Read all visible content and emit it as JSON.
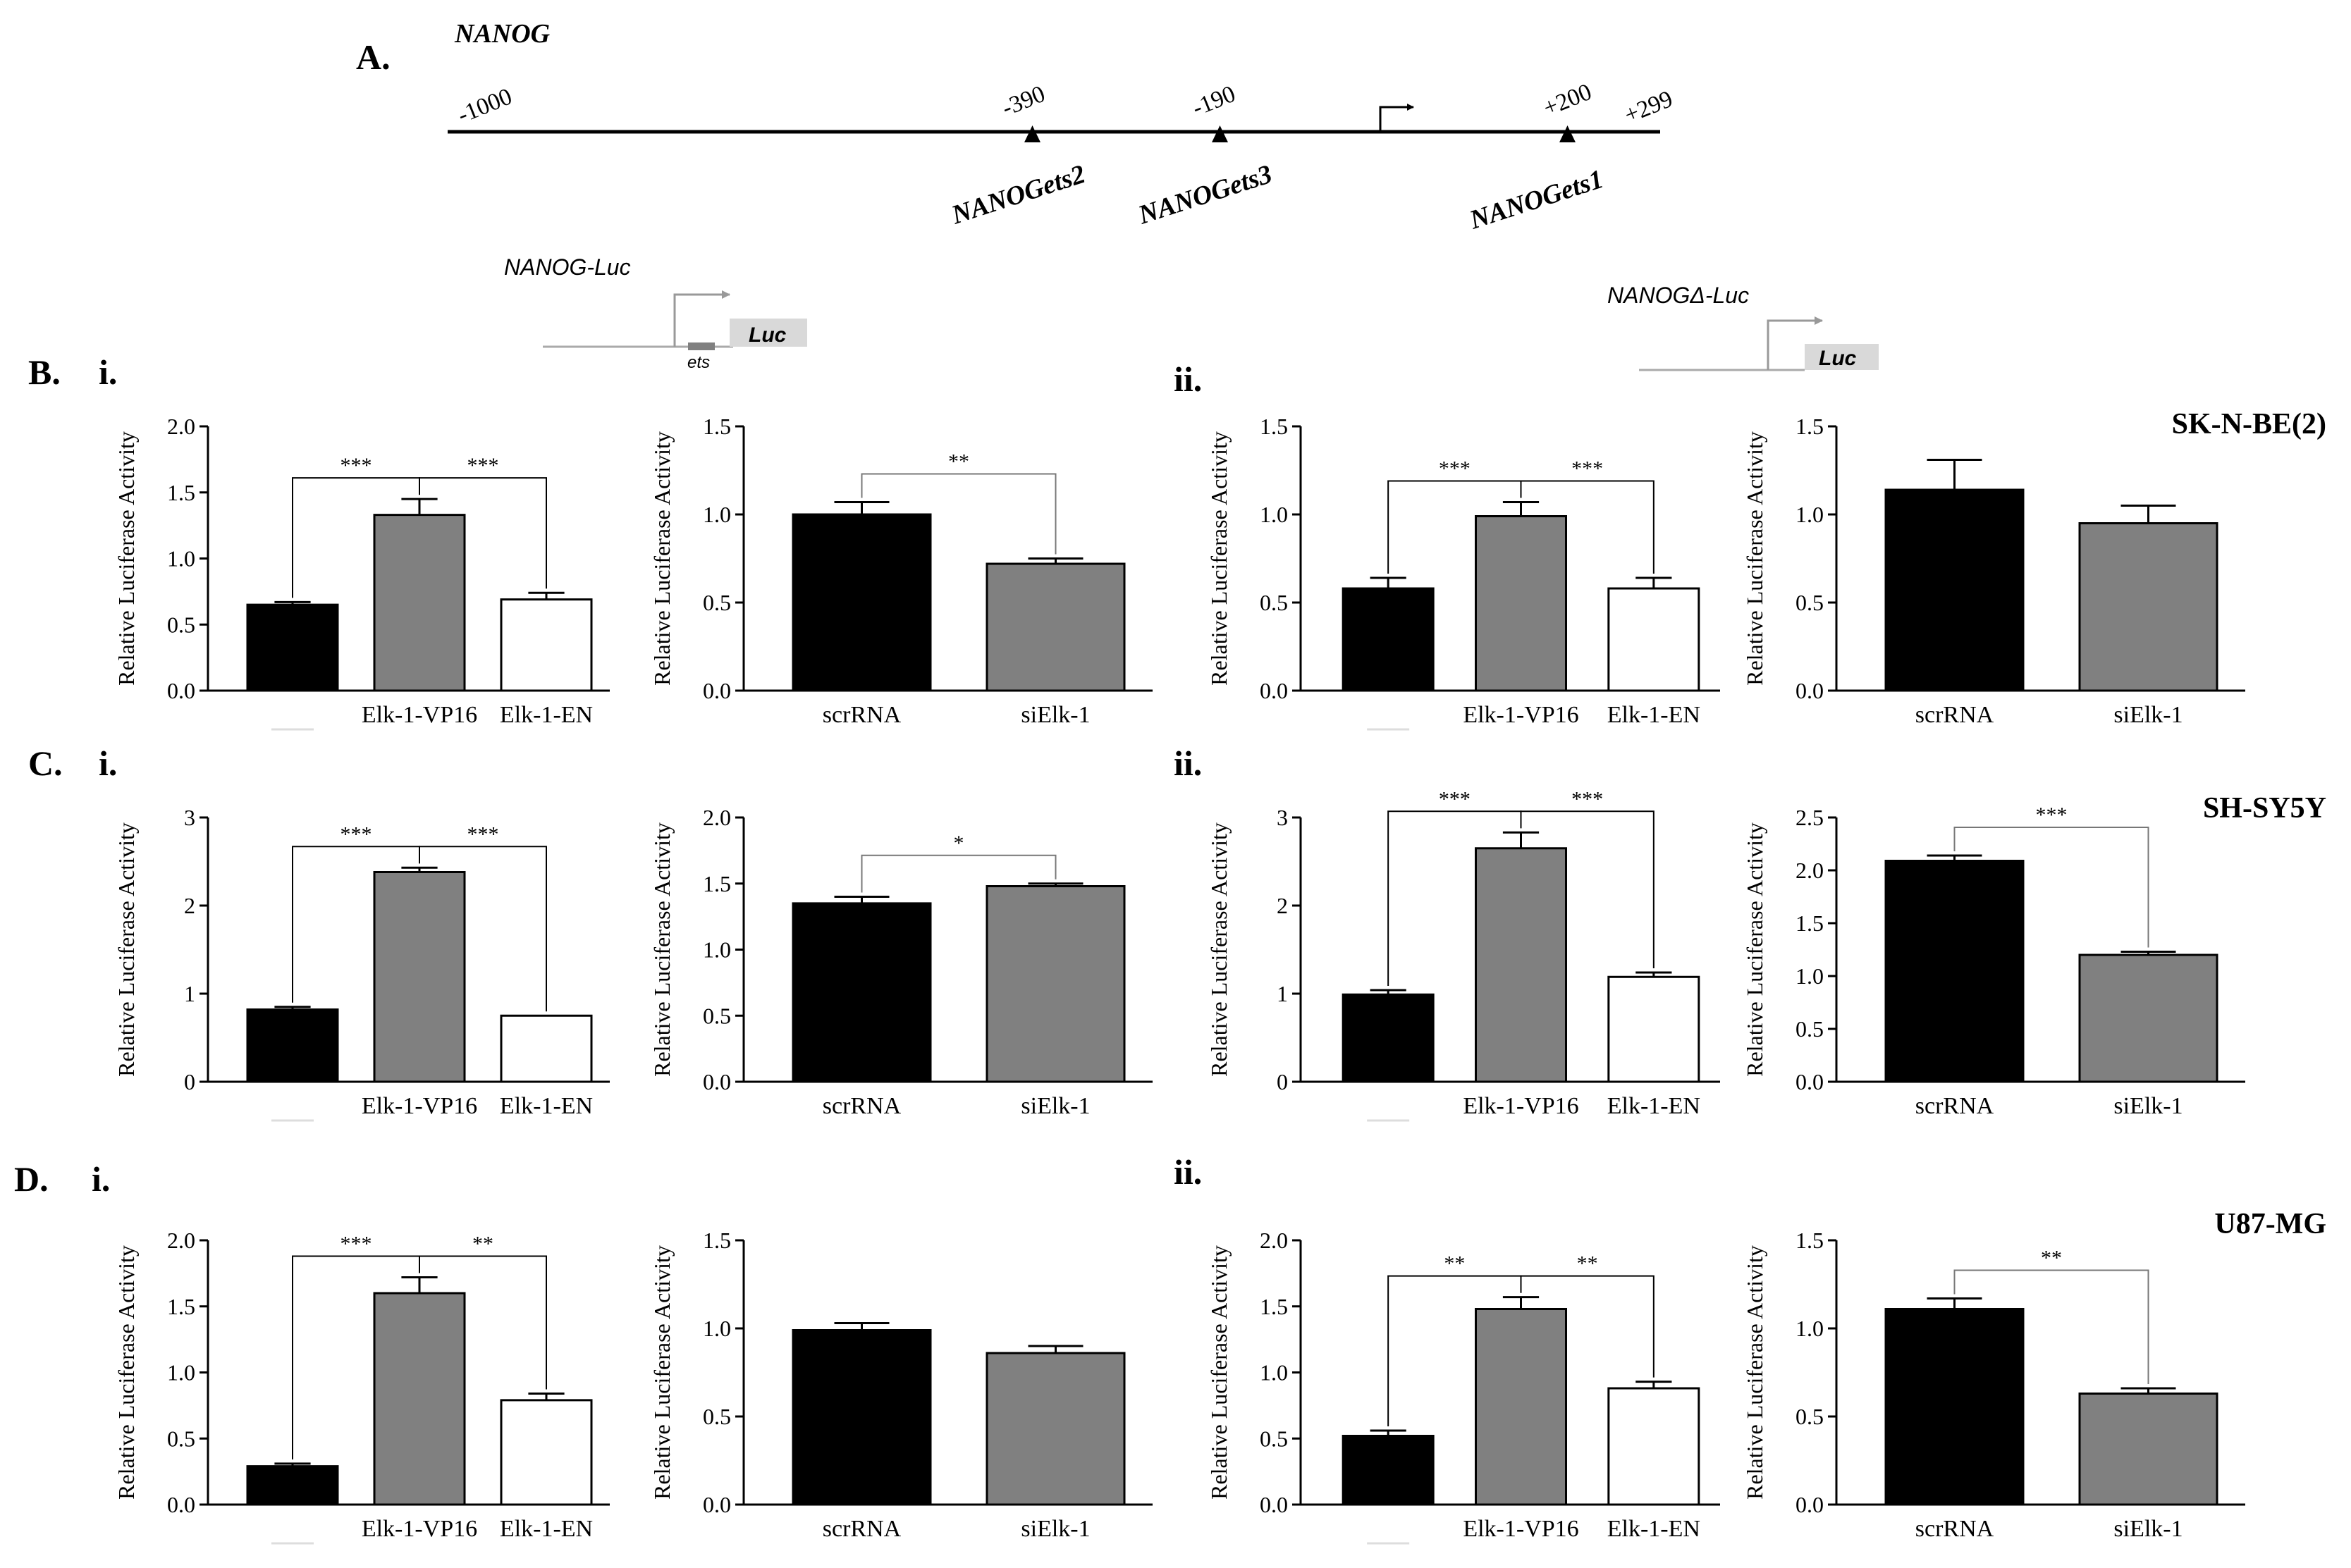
{
  "colors": {
    "black": "#000000",
    "gray": "#808080",
    "white": "#ffffff",
    "light_gray": "#d9d9d9",
    "line": "#000000",
    "sig": "#777777"
  },
  "labels": {
    "panel_a": "A.",
    "gene": "NANOG",
    "pos_m1000": "-1000",
    "pos_m390": "-390",
    "pos_m190": "-190",
    "pos_p200": "+200",
    "pos_p299": "+299",
    "site_ets2": "NANOGets2",
    "site_ets3": "NANOGets3",
    "site_ets1": "NANOGets1",
    "construct_full": "NANOG-Luc",
    "construct_delta": "NANOGΔ-Luc",
    "luc": "Luc",
    "ets": "ets",
    "panel_b": "B.",
    "panel_c": "C.",
    "panel_d": "D.",
    "sub_i": "i.",
    "sub_ii": "ii.",
    "cell_b": "SK-N-BE(2)",
    "cell_c": "SH-SY5Y",
    "cell_d": "U87-MG"
  },
  "chart_data": [
    {
      "id": "B-i-1",
      "type": "bar",
      "ylabel": "Relative Luciferase Activity",
      "ylim": [
        0,
        2.0
      ],
      "ticks": [
        "0.0",
        "0.5",
        "1.0",
        "1.5",
        "2.0"
      ],
      "categories": [
        "",
        "Elk-1-VP16",
        "Elk-1-EN"
      ],
      "fills": [
        "black",
        "gray",
        "white"
      ],
      "values": [
        0.65,
        1.33,
        0.69
      ],
      "errors": [
        0.02,
        0.12,
        0.05
      ],
      "brackets": [
        {
          "from": 0,
          "to": 1,
          "label": "***"
        },
        {
          "from": 1,
          "to": 2,
          "label": "***"
        }
      ]
    },
    {
      "id": "B-i-2",
      "type": "bar",
      "ylabel": "Relative Luciferase Activity",
      "ylim": [
        0,
        1.5
      ],
      "ticks": [
        "0.0",
        "0.5",
        "1.0",
        "1.5"
      ],
      "categories": [
        "scrRNA",
        "siElk-1"
      ],
      "fills": [
        "black",
        "gray"
      ],
      "values": [
        1.0,
        0.72
      ],
      "errors": [
        0.07,
        0.03
      ],
      "brackets": [
        {
          "from": 0,
          "to": 1,
          "label": "**"
        }
      ]
    },
    {
      "id": "B-ii-1",
      "type": "bar",
      "ylabel": "Relative Luciferase Activity",
      "ylim": [
        0,
        1.5
      ],
      "ticks": [
        "0.0",
        "0.5",
        "1.0",
        "1.5"
      ],
      "categories": [
        "",
        "Elk-1-VP16",
        "Elk-1-EN"
      ],
      "fills": [
        "black",
        "gray",
        "white"
      ],
      "values": [
        0.58,
        0.99,
        0.58
      ],
      "errors": [
        0.06,
        0.08,
        0.06
      ],
      "brackets": [
        {
          "from": 0,
          "to": 1,
          "label": "***"
        },
        {
          "from": 1,
          "to": 2,
          "label": "***"
        }
      ]
    },
    {
      "id": "B-ii-2",
      "type": "bar",
      "ylabel": "Relative Luciferase Activity",
      "ylim": [
        0,
        1.5
      ],
      "ticks": [
        "0.0",
        "0.5",
        "1.0",
        "1.5"
      ],
      "categories": [
        "scrRNA",
        "siElk-1"
      ],
      "fills": [
        "black",
        "gray"
      ],
      "values": [
        1.14,
        0.95
      ],
      "errors": [
        0.17,
        0.1
      ],
      "brackets": []
    },
    {
      "id": "C-i-1",
      "type": "bar",
      "ylabel": "Relative Luciferase Activity",
      "ylim": [
        0,
        3
      ],
      "ticks": [
        "0",
        "1",
        "2",
        "3"
      ],
      "categories": [
        "",
        "Elk-1-VP16",
        "Elk-1-EN"
      ],
      "fills": [
        "black",
        "gray",
        "white"
      ],
      "values": [
        0.82,
        2.38,
        0.75
      ],
      "errors": [
        0.03,
        0.05,
        0.0
      ],
      "brackets": [
        {
          "from": 0,
          "to": 1,
          "label": "***"
        },
        {
          "from": 1,
          "to": 2,
          "label": "***"
        }
      ]
    },
    {
      "id": "C-i-2",
      "type": "bar",
      "ylabel": "Relative Luciferase Activity",
      "ylim": [
        0,
        2.0
      ],
      "ticks": [
        "0.0",
        "0.5",
        "1.0",
        "1.5",
        "2.0"
      ],
      "categories": [
        "scrRNA",
        "siElk-1"
      ],
      "fills": [
        "black",
        "gray"
      ],
      "values": [
        1.35,
        1.48
      ],
      "errors": [
        0.05,
        0.02
      ],
      "brackets": [
        {
          "from": 0,
          "to": 1,
          "label": "*"
        }
      ]
    },
    {
      "id": "C-ii-1",
      "type": "bar",
      "ylabel": "Relative Luciferase Activity",
      "ylim": [
        0,
        3
      ],
      "ticks": [
        "0",
        "1",
        "2",
        "3"
      ],
      "categories": [
        "",
        "Elk-1-VP16",
        "Elk-1-EN"
      ],
      "fills": [
        "black",
        "gray",
        "white"
      ],
      "values": [
        0.99,
        2.65,
        1.19
      ],
      "errors": [
        0.05,
        0.18,
        0.05
      ],
      "brackets": [
        {
          "from": 0,
          "to": 1,
          "label": "***"
        },
        {
          "from": 1,
          "to": 2,
          "label": "***"
        }
      ]
    },
    {
      "id": "C-ii-2",
      "type": "bar",
      "ylabel": "Relative Luciferase Activity",
      "ylim": [
        0,
        2.5
      ],
      "ticks": [
        "0.0",
        "0.5",
        "1.0",
        "1.5",
        "2.0",
        "2.5"
      ],
      "categories": [
        "scrRNA",
        "siElk-1"
      ],
      "fills": [
        "black",
        "gray"
      ],
      "values": [
        2.09,
        1.2
      ],
      "errors": [
        0.05,
        0.03
      ],
      "brackets": [
        {
          "from": 0,
          "to": 1,
          "label": "***"
        }
      ]
    },
    {
      "id": "D-i-1",
      "type": "bar",
      "ylabel": "Relative Luciferase Activity",
      "ylim": [
        0,
        2.0
      ],
      "ticks": [
        "0.0",
        "0.5",
        "1.0",
        "1.5",
        "2.0"
      ],
      "categories": [
        "",
        "Elk-1-VP16",
        "Elk-1-EN"
      ],
      "fills": [
        "black",
        "gray",
        "white"
      ],
      "values": [
        0.29,
        1.6,
        0.79
      ],
      "errors": [
        0.02,
        0.12,
        0.05
      ],
      "brackets": [
        {
          "from": 0,
          "to": 1,
          "label": "***"
        },
        {
          "from": 1,
          "to": 2,
          "label": "**"
        }
      ]
    },
    {
      "id": "D-i-2",
      "type": "bar",
      "ylabel": "Relative Luciferase Activity",
      "ylim": [
        0,
        1.5
      ],
      "ticks": [
        "0.0",
        "0.5",
        "1.0",
        "1.5"
      ],
      "categories": [
        "scrRNA",
        "siElk-1"
      ],
      "fills": [
        "black",
        "gray"
      ],
      "values": [
        0.99,
        0.86
      ],
      "errors": [
        0.04,
        0.04
      ],
      "brackets": []
    },
    {
      "id": "D-ii-1",
      "type": "bar",
      "ylabel": "Relative Luciferase Activity",
      "ylim": [
        0,
        2.0
      ],
      "ticks": [
        "0.0",
        "0.5",
        "1.0",
        "1.5",
        "2.0"
      ],
      "categories": [
        "",
        "Elk-1-VP16",
        "Elk-1-EN"
      ],
      "fills": [
        "black",
        "gray",
        "white"
      ],
      "values": [
        0.52,
        1.48,
        0.88
      ],
      "errors": [
        0.04,
        0.09,
        0.05
      ],
      "brackets": [
        {
          "from": 0,
          "to": 1,
          "label": "**"
        },
        {
          "from": 1,
          "to": 2,
          "label": "**"
        }
      ]
    },
    {
      "id": "D-ii-2",
      "type": "bar",
      "ylabel": "Relative Luciferase Activity",
      "ylim": [
        0,
        1.5
      ],
      "ticks": [
        "0.0",
        "0.5",
        "1.0",
        "1.5"
      ],
      "categories": [
        "scrRNA",
        "siElk-1"
      ],
      "fills": [
        "black",
        "gray"
      ],
      "values": [
        1.11,
        0.63
      ],
      "errors": [
        0.06,
        0.03
      ],
      "brackets": [
        {
          "from": 0,
          "to": 1,
          "label": "**"
        }
      ]
    }
  ]
}
